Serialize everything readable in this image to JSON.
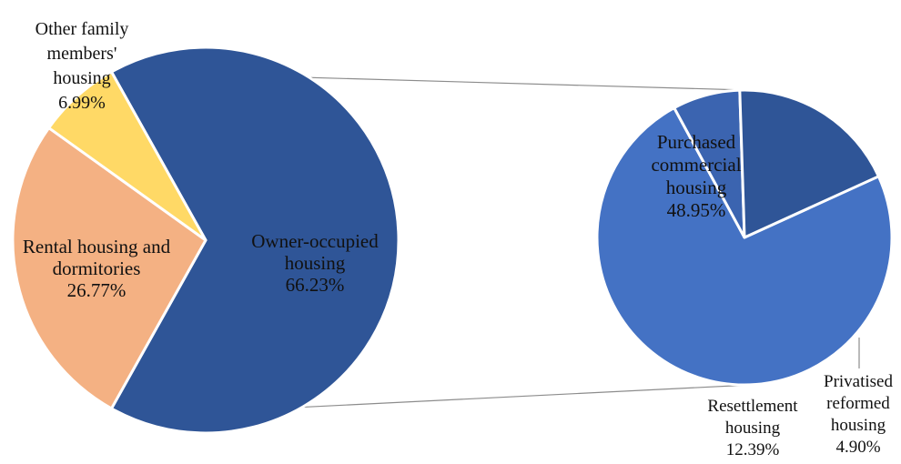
{
  "chart_data": [
    {
      "type": "pie",
      "slices": [
        {
          "label_lines": [
            "Owner-occupied",
            "housing"
          ],
          "value_text": "66.23%",
          "value": 66.23,
          "color": "#2F5597"
        },
        {
          "label_lines": [
            "Rental housing and",
            "dormitories"
          ],
          "value_text": "26.77%",
          "value": 26.77,
          "color": "#F4B183"
        },
        {
          "label_lines": [
            "Other family",
            "members'",
            "housing"
          ],
          "value_text": "6.99%",
          "value": 6.99,
          "color": "#FFD966"
        }
      ]
    },
    {
      "type": "pie",
      "slices": [
        {
          "label_lines": [
            "Purchased",
            "commercial",
            "housing"
          ],
          "value_text": "48.95%",
          "value": 48.95,
          "color": "#4472C4"
        },
        {
          "label_lines": [
            "Privatised",
            "reformed",
            "housing"
          ],
          "value_text": "4.90%",
          "value": 4.9,
          "color": "#3B64B0"
        },
        {
          "label_lines": [
            "Resettlement",
            "housing"
          ],
          "value_text": "12.39%",
          "value": 12.39,
          "color": "#2F5597"
        }
      ]
    }
  ]
}
